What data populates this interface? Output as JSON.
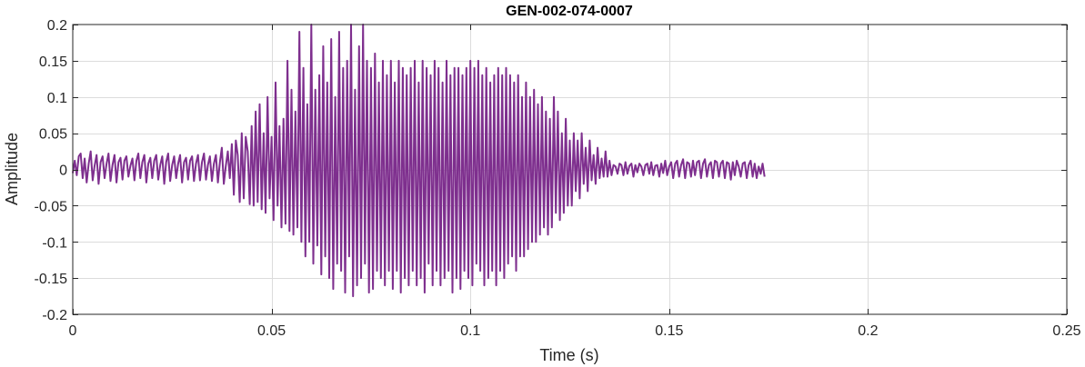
{
  "chart_data": {
    "type": "line",
    "title": "GEN-002-074-0007",
    "xlabel": "Time (s)",
    "ylabel": "Amplitude",
    "xlim": [
      0,
      0.25
    ],
    "ylim": [
      -0.2,
      0.2
    ],
    "x_ticks": [
      0,
      0.05,
      0.1,
      0.15,
      0.2,
      0.25
    ],
    "x_tick_labels": [
      "0",
      "0.05",
      "0.1",
      "0.15",
      "0.2",
      "0.25"
    ],
    "y_ticks": [
      0.2,
      0.15,
      0.1,
      0.05,
      0,
      -0.05,
      -0.1,
      -0.15,
      -0.2
    ],
    "y_tick_labels": [
      "0.2",
      "0.15",
      "0.1",
      "0.05",
      "0",
      "-0.05",
      "-0.1",
      "-0.15",
      "-0.2"
    ],
    "grid": true,
    "line_color": "#7E2F8E",
    "x_start": 0,
    "x_step": 0.0005,
    "y": [
      -0.005,
      0.012,
      -0.008,
      0.018,
      0.022,
      -0.012,
      0.015,
      -0.018,
      0.008,
      0.025,
      -0.015,
      0.005,
      0.02,
      -0.02,
      0.01,
      0.018,
      -0.012,
      0.008,
      0.022,
      -0.016,
      0.006,
      0.02,
      -0.018,
      0.01,
      0.016,
      -0.014,
      0.012,
      0.018,
      -0.01,
      0.005,
      0.015,
      -0.015,
      0.012,
      0.022,
      -0.012,
      0.01,
      0.02,
      -0.018,
      0.008,
      0.016,
      -0.012,
      0.012,
      0.02,
      -0.014,
      0.006,
      0.018,
      -0.02,
      0.01,
      0.022,
      -0.016,
      0.006,
      0.018,
      -0.012,
      0.008,
      0.02,
      -0.018,
      0.01,
      0.016,
      -0.014,
      0.012,
      0.018,
      -0.016,
      0.008,
      0.02,
      -0.015,
      0.01,
      0.022,
      -0.014,
      0.006,
      0.018,
      -0.016,
      0.008,
      0.02,
      -0.018,
      0.01,
      0.03,
      -0.02,
      0.005,
      0.025,
      -0.012,
      0.035,
      -0.035,
      0.04,
      0.02,
      -0.045,
      0.05,
      -0.04,
      0.045,
      0.025,
      -0.048,
      0.06,
      -0.05,
      0.08,
      -0.045,
      0.09,
      -0.055,
      0.05,
      -0.06,
      0.1,
      -0.04,
      0.045,
      -0.07,
      0.12,
      -0.05,
      0.06,
      -0.08,
      0.07,
      -0.075,
      0.15,
      -0.085,
      0.11,
      -0.09,
      0.08,
      -0.08,
      0.19,
      -0.1,
      0.14,
      -0.12,
      0.09,
      -0.1,
      0.2,
      -0.13,
      0.11,
      -0.105,
      0.13,
      -0.145,
      0.17,
      -0.12,
      0.12,
      -0.15,
      0.18,
      -0.165,
      0.1,
      -0.13,
      0.19,
      -0.14,
      0.14,
      -0.17,
      0.15,
      -0.12,
      0.2,
      -0.175,
      0.11,
      -0.16,
      0.17,
      -0.15,
      0.2,
      -0.13,
      0.15,
      -0.17,
      0.14,
      -0.165,
      0.16,
      -0.14,
      0.12,
      -0.15,
      0.15,
      -0.16,
      0.13,
      -0.14,
      0.15,
      -0.165,
      0.12,
      -0.14,
      0.15,
      -0.17,
      0.14,
      -0.15,
      0.13,
      -0.16,
      0.14,
      -0.14,
      0.15,
      -0.16,
      0.12,
      -0.15,
      0.15,
      -0.17,
      0.14,
      -0.13,
      0.13,
      -0.16,
      0.15,
      -0.14,
      0.14,
      -0.16,
      0.12,
      -0.15,
      0.15,
      -0.14,
      0.13,
      -0.17,
      0.14,
      -0.15,
      0.14,
      -0.165,
      0.13,
      -0.14,
      0.14,
      -0.15,
      0.15,
      -0.16,
      0.14,
      -0.13,
      0.15,
      -0.14,
      0.13,
      -0.16,
      0.14,
      -0.15,
      0.12,
      -0.14,
      0.13,
      -0.16,
      0.14,
      -0.14,
      0.13,
      -0.15,
      0.14,
      -0.13,
      0.13,
      -0.12,
      0.12,
      -0.14,
      0.13,
      -0.12,
      0.1,
      -0.12,
      0.12,
      -0.11,
      0.1,
      -0.1,
      0.11,
      -0.1,
      0.09,
      -0.09,
      0.1,
      -0.08,
      0.08,
      -0.09,
      0.07,
      -0.08,
      0.1,
      -0.06,
      0.08,
      -0.07,
      0.05,
      -0.06,
      0.07,
      -0.05,
      0.04,
      -0.05,
      0.05,
      -0.03,
      0.04,
      -0.04,
      0.05,
      -0.02,
      0.03,
      -0.03,
      0.04,
      -0.015,
      0.02,
      -0.02,
      0.03,
      -0.012,
      0.015,
      -0.01,
      0.025,
      -0.01,
      0.012,
      -0.008,
      0.006,
      0.004,
      -0.006,
      0.008,
      0.006,
      -0.008,
      0.01,
      -0.006,
      0.005,
      0.008,
      -0.01,
      0.006,
      -0.004,
      0.008,
      0.004,
      -0.008,
      0.006,
      0.008,
      -0.006,
      0.01,
      -0.008,
      0.005,
      0.006,
      -0.01,
      0.008,
      -0.005,
      0.012,
      -0.008,
      0.004,
      0.01,
      -0.012,
      0.008,
      0.012,
      -0.01,
      0.006,
      0.014,
      -0.012,
      0.01,
      0.008,
      -0.01,
      0.012,
      -0.008,
      0.01,
      0.012,
      -0.012,
      0.008,
      0.014,
      -0.01,
      0.006,
      0.01,
      -0.012,
      0.012,
      0.01,
      -0.01,
      0.008,
      0.012,
      -0.012,
      0.01,
      0.008,
      -0.014,
      0.01,
      -0.008,
      0.012,
      0.004,
      -0.01,
      0.008,
      0.01,
      -0.012,
      0.006,
      0.012,
      -0.01,
      0.008,
      -0.012,
      0.004,
      -0.006,
      0.008,
      -0.01
    ]
  }
}
